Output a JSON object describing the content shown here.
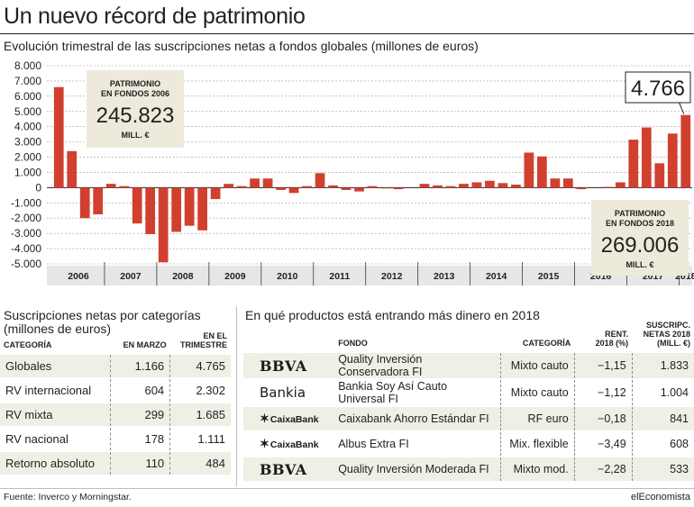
{
  "header": {
    "title": "Un nuevo récord de patrimonio",
    "subtitle": "Evolución trimestral de las suscripciones netas a fondos globales (millones de euros)"
  },
  "colors": {
    "bar": "#d13f2f",
    "callout_bg": "#eeeadb",
    "row_shade": "#efefe5"
  },
  "chart_data": {
    "type": "bar",
    "title": "Evolución trimestral de las suscripciones netas a fondos globales (millones de euros)",
    "ylim": [
      -5000,
      8000
    ],
    "y_ticks": [
      8000,
      7000,
      6000,
      5000,
      4000,
      3000,
      2000,
      1000,
      0,
      -1000,
      -2000,
      -3000,
      -4000,
      -5000
    ],
    "y_tick_labels": [
      "8.000",
      "7.000",
      "6.000",
      "5.000",
      "4.000",
      "3.000",
      "2.000",
      "1.000",
      "0",
      "-1.000",
      "-2.000",
      "-3.000",
      "-4.000",
      "-5.000"
    ],
    "grid": "horizontal",
    "x_labels": [
      "2006",
      "2007",
      "2008",
      "2009",
      "2010",
      "2011",
      "2012",
      "2013",
      "2014",
      "2015",
      "2016",
      "2017",
      "2018"
    ],
    "categories": [
      "2006-T1",
      "2006-T2",
      "2006-T3",
      "2006-T4",
      "2007-T1",
      "2007-T2",
      "2007-T3",
      "2007-T4",
      "2008-T1",
      "2008-T2",
      "2008-T3",
      "2008-T4",
      "2009-T1",
      "2009-T2",
      "2009-T3",
      "2009-T4",
      "2010-T1",
      "2010-T2",
      "2010-T3",
      "2010-T4",
      "2011-T1",
      "2011-T2",
      "2011-T3",
      "2011-T4",
      "2012-T1",
      "2012-T2",
      "2012-T3",
      "2012-T4",
      "2013-T1",
      "2013-T2",
      "2013-T3",
      "2013-T4",
      "2014-T1",
      "2014-T2",
      "2014-T3",
      "2014-T4",
      "2015-T1",
      "2015-T2",
      "2015-T3",
      "2015-T4",
      "2016-T1",
      "2016-T2",
      "2016-T3",
      "2016-T4",
      "2017-T1",
      "2017-T2",
      "2017-T3",
      "2017-T4",
      "2018-T1"
    ],
    "values": [
      6600,
      2400,
      -2000,
      -1750,
      250,
      100,
      -2350,
      -3050,
      -4900,
      -2900,
      -2500,
      -2800,
      -750,
      250,
      100,
      600,
      600,
      -150,
      -350,
      100,
      950,
      150,
      -150,
      -250,
      100,
      -50,
      -100,
      0,
      250,
      150,
      100,
      250,
      350,
      450,
      300,
      200,
      2300,
      2050,
      600,
      600,
      -100,
      0,
      50,
      350,
      3150,
      3950,
      1600,
      3550,
      4766
    ],
    "highlight": {
      "label": "4.766",
      "value": 4766
    },
    "callouts": [
      {
        "line1": "PATRIMONIO",
        "line2": "EN FONDOS 2006",
        "value": "245.823",
        "unit": "MILL. €"
      },
      {
        "line1": "PATRIMONIO",
        "line2": "EN FONDOS 2018",
        "value": "269.006",
        "unit": "MILL. €"
      }
    ]
  },
  "categories_section": {
    "title_line1": "Suscripciones netas por categorías",
    "title_line2": "(millones de euros)",
    "headers": {
      "categoria": "CATEGORÍA",
      "marzo": "EN MARZO",
      "trimestre_1": "EN EL",
      "trimestre_2": "TRIMESTRE"
    },
    "rows": [
      {
        "categoria": "Globales",
        "marzo": "1.166",
        "trimestre": "4.765"
      },
      {
        "categoria": "RV internacional",
        "marzo": "604",
        "trimestre": "2.302"
      },
      {
        "categoria": "RV mixta",
        "marzo": "299",
        "trimestre": "1.685"
      },
      {
        "categoria": "RV nacional",
        "marzo": "178",
        "trimestre": "1.111"
      },
      {
        "categoria": "Retorno absoluto",
        "marzo": "110",
        "trimestre": "484"
      }
    ]
  },
  "products_section": {
    "title": "En qué productos está entrando más dinero en 2018",
    "headers": {
      "fondo": "FONDO",
      "categoria": "CATEGORÍA",
      "rent_1": "RENT.",
      "rent_2": "2018 (%)",
      "susc_1": "SUSCRIPC.",
      "susc_2": "NETAS 2018",
      "susc_3": "(MILL. €)"
    },
    "rows": [
      {
        "logo": "BBVA",
        "logo_type": "bbva",
        "fondo": "Quality Inversión Conservadora FI",
        "categoria": "Mixto cauto",
        "rent": "−1,15",
        "susc": "1.833"
      },
      {
        "logo": "Bankia",
        "logo_type": "bankia",
        "fondo": "Bankia Soy Así Cauto Universal FI",
        "categoria": "Mixto cauto",
        "rent": "−1,12",
        "susc": "1.004"
      },
      {
        "logo": "CaixaBank",
        "logo_type": "caixa",
        "fondo": "Caixabank Ahorro Estándar FI",
        "categoria": "RF euro",
        "rent": "−0,18",
        "susc": "841"
      },
      {
        "logo": "CaixaBank",
        "logo_type": "caixa",
        "fondo": "Albus Extra FI",
        "categoria": "Mix. flexible",
        "rent": "−3,49",
        "susc": "608"
      },
      {
        "logo": "BBVA",
        "logo_type": "bbva",
        "fondo": "Quality Inversión Moderada FI",
        "categoria": "Mixto mod.",
        "rent": "−2,28",
        "susc": "533"
      }
    ]
  },
  "footer": {
    "source": "Fuente: Inverco y Morningstar.",
    "brand": "elEconomista"
  }
}
